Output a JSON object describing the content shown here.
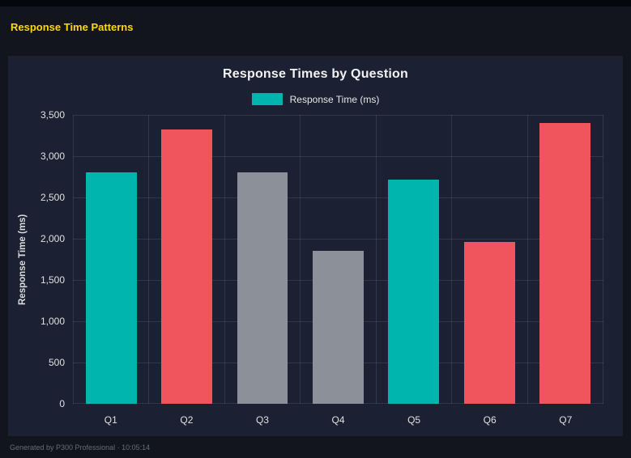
{
  "header": {
    "title": "Response Time Patterns"
  },
  "chart_data": {
    "type": "bar",
    "title": "Response Times by Question",
    "legend_label": "Response Time (ms)",
    "legend_position": "top",
    "xlabel": "",
    "ylabel": "Response Time (ms)",
    "categories": [
      "Q1",
      "Q2",
      "Q3",
      "Q4",
      "Q5",
      "Q6",
      "Q7"
    ],
    "values": [
      2800,
      3320,
      2800,
      1850,
      2720,
      1960,
      3400
    ],
    "bar_colors": [
      "#00b5ad",
      "#f0545c",
      "#8c9099",
      "#8c9099",
      "#00b5ad",
      "#f0545c",
      "#f0545c"
    ],
    "series_color": "#00b5ad",
    "ylim": [
      0,
      3500
    ],
    "ytick_values": [
      0,
      500,
      1000,
      1500,
      2000,
      2500,
      3000,
      3500
    ],
    "ytick_labels": [
      "0",
      "500",
      "1,000",
      "1,500",
      "2,000",
      "2,500",
      "3,000",
      "3,500"
    ],
    "grid": true
  },
  "footer": {
    "text": "Generated by P300 Professional · 10:05:14"
  },
  "colors": {
    "page_background": "#13151e",
    "panel_background": "#1b2132",
    "accent_title": "#ffd900",
    "teal": "#00b5ad",
    "red": "#f0545c",
    "gray": "#8c9099"
  }
}
